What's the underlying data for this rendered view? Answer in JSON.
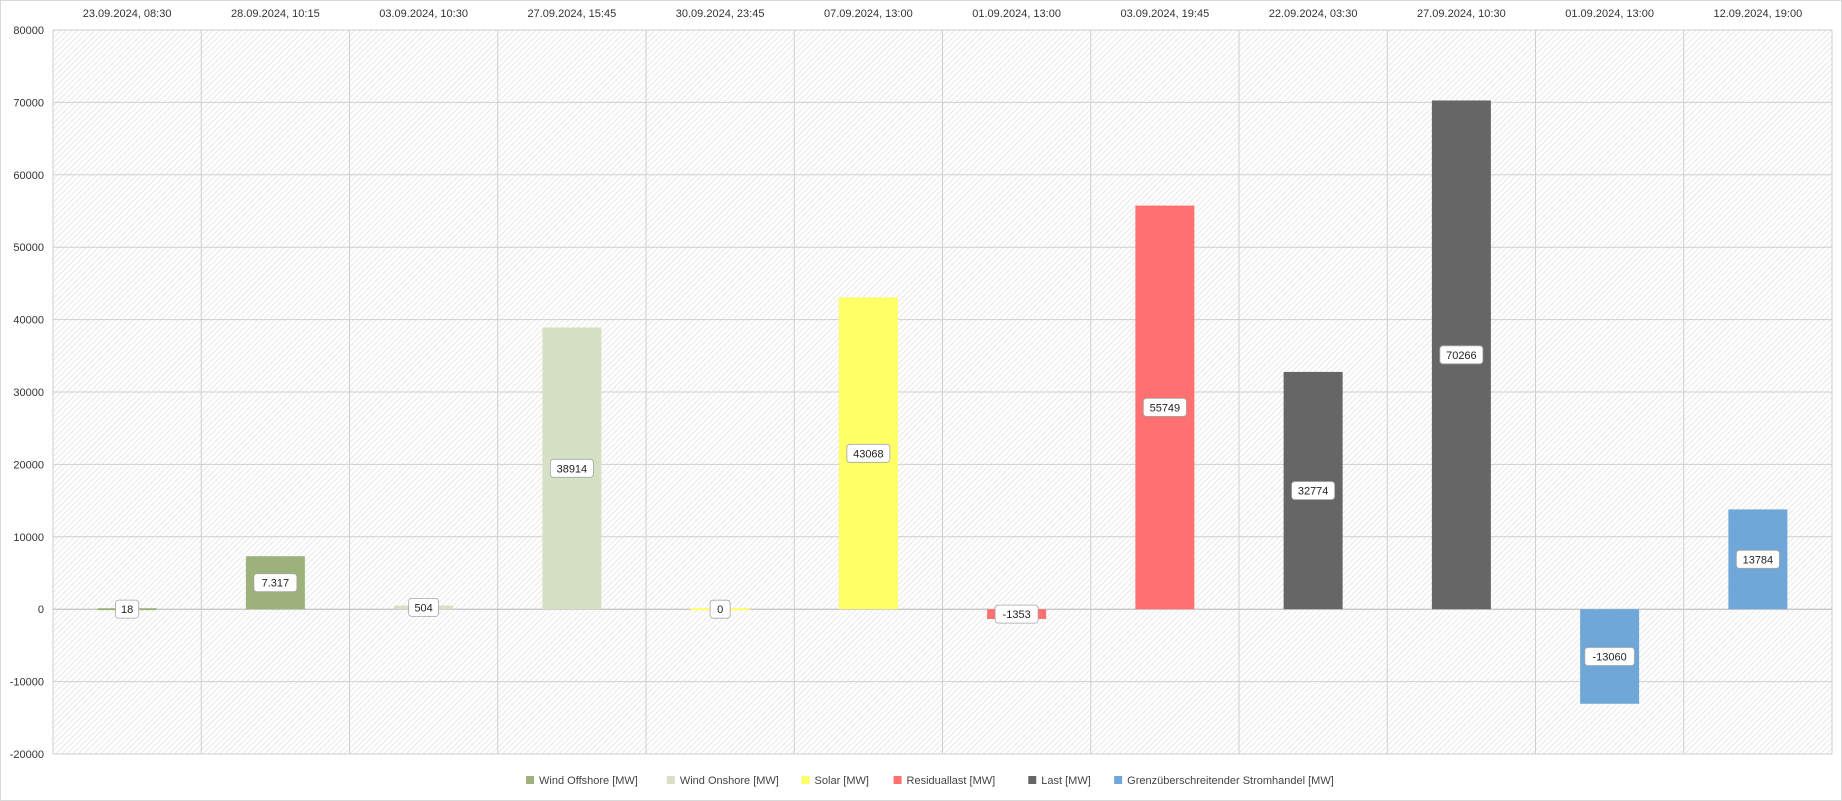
{
  "chart_data": {
    "type": "bar",
    "categories": [
      "23.09.2024, 08:30",
      "28.09.2024, 10:15",
      "03.09.2024, 10:30",
      "27.09.2024, 15:45",
      "30.09.2024, 23:45",
      "07.09.2024, 13:00",
      "01.09.2024, 13:00",
      "03.09.2024, 19:45",
      "22.09.2024, 03:30",
      "27.09.2024, 10:30",
      "01.09.2024, 13:00",
      "12.09.2024, 19:00"
    ],
    "series": [
      {
        "name": "Wind Offshore [MW]",
        "color": "#9cb27a",
        "values": [
          18,
          7317,
          null,
          null,
          null,
          null,
          null,
          null,
          null,
          null,
          null,
          null
        ],
        "labels": [
          "18",
          "7.317",
          null,
          null,
          null,
          null,
          null,
          null,
          null,
          null,
          null,
          null
        ]
      },
      {
        "name": "Wind Onshore [MW]",
        "color": "#d6e0c4",
        "values": [
          null,
          null,
          504,
          38914,
          null,
          null,
          null,
          null,
          null,
          null,
          null,
          null
        ],
        "labels": [
          null,
          null,
          "504",
          "38914",
          null,
          null,
          null,
          null,
          null,
          null,
          null,
          null
        ]
      },
      {
        "name": "Solar [MW]",
        "color": "#ffff66",
        "values": [
          null,
          null,
          null,
          null,
          0,
          43068,
          null,
          null,
          null,
          null,
          null,
          null
        ],
        "labels": [
          null,
          null,
          null,
          null,
          "0",
          "43068",
          null,
          null,
          null,
          null,
          null,
          null
        ]
      },
      {
        "name": "Residuallast [MW]",
        "color": "#ff7070",
        "values": [
          null,
          null,
          null,
          null,
          null,
          null,
          -1353,
          55749,
          null,
          null,
          null,
          null
        ],
        "labels": [
          null,
          null,
          null,
          null,
          null,
          null,
          "-1353",
          "55749",
          null,
          null,
          null,
          null
        ]
      },
      {
        "name": "Last [MW]",
        "color": "#666666",
        "values": [
          null,
          null,
          null,
          null,
          null,
          null,
          null,
          null,
          32774,
          70266,
          null,
          null
        ],
        "labels": [
          null,
          null,
          null,
          null,
          null,
          null,
          null,
          null,
          "32774",
          "70266",
          null,
          null
        ]
      },
      {
        "name": "Grenzüberschreitender Stromhandel [MW]",
        "color": "#6fa8d8",
        "values": [
          null,
          null,
          null,
          null,
          null,
          null,
          null,
          null,
          null,
          null,
          -13060,
          13784
        ],
        "labels": [
          null,
          null,
          null,
          null,
          null,
          null,
          null,
          null,
          null,
          null,
          "-13060",
          "13784"
        ]
      }
    ],
    "yticks": [
      "80000",
      "70000",
      "60000",
      "50000",
      "40000",
      "30000",
      "20000",
      "10000",
      "0",
      "-10000",
      "-20000"
    ],
    "ylim": [
      -20000,
      80000
    ],
    "title": "",
    "xlabel": "",
    "ylabel": "",
    "grid": true,
    "legend_position": "bottom",
    "category_labels_position": "top"
  }
}
